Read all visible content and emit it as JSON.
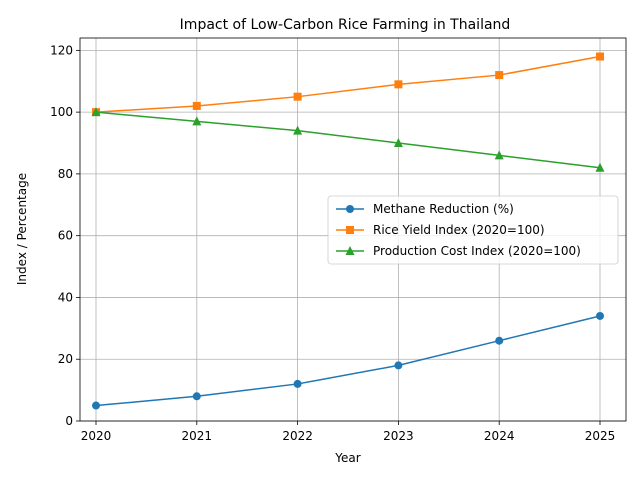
{
  "chart_data": {
    "type": "line",
    "title": "Impact of Low-Carbon Rice Farming in Thailand",
    "xlabel": "Year",
    "ylabel": "Index / Percentage",
    "x": [
      "2020",
      "2021",
      "2022",
      "2023",
      "2024",
      "2025"
    ],
    "ylim": [
      0,
      124
    ],
    "yticks": [
      "0",
      "20",
      "40",
      "60",
      "80",
      "100",
      "120"
    ],
    "grid": true,
    "legend_position": "center-right",
    "series": [
      {
        "name": "Methane Reduction (%)",
        "values": [
          5,
          8,
          12,
          18,
          26,
          34
        ],
        "color": "#1f77b4",
        "marker": "circle"
      },
      {
        "name": "Rice Yield Index (2020=100)",
        "values": [
          100,
          102,
          105,
          109,
          112,
          118
        ],
        "color": "#ff7f0e",
        "marker": "square"
      },
      {
        "name": "Production Cost Index (2020=100)",
        "values": [
          100,
          97,
          94,
          90,
          86,
          82
        ],
        "color": "#2ca02c",
        "marker": "triangle"
      }
    ]
  }
}
